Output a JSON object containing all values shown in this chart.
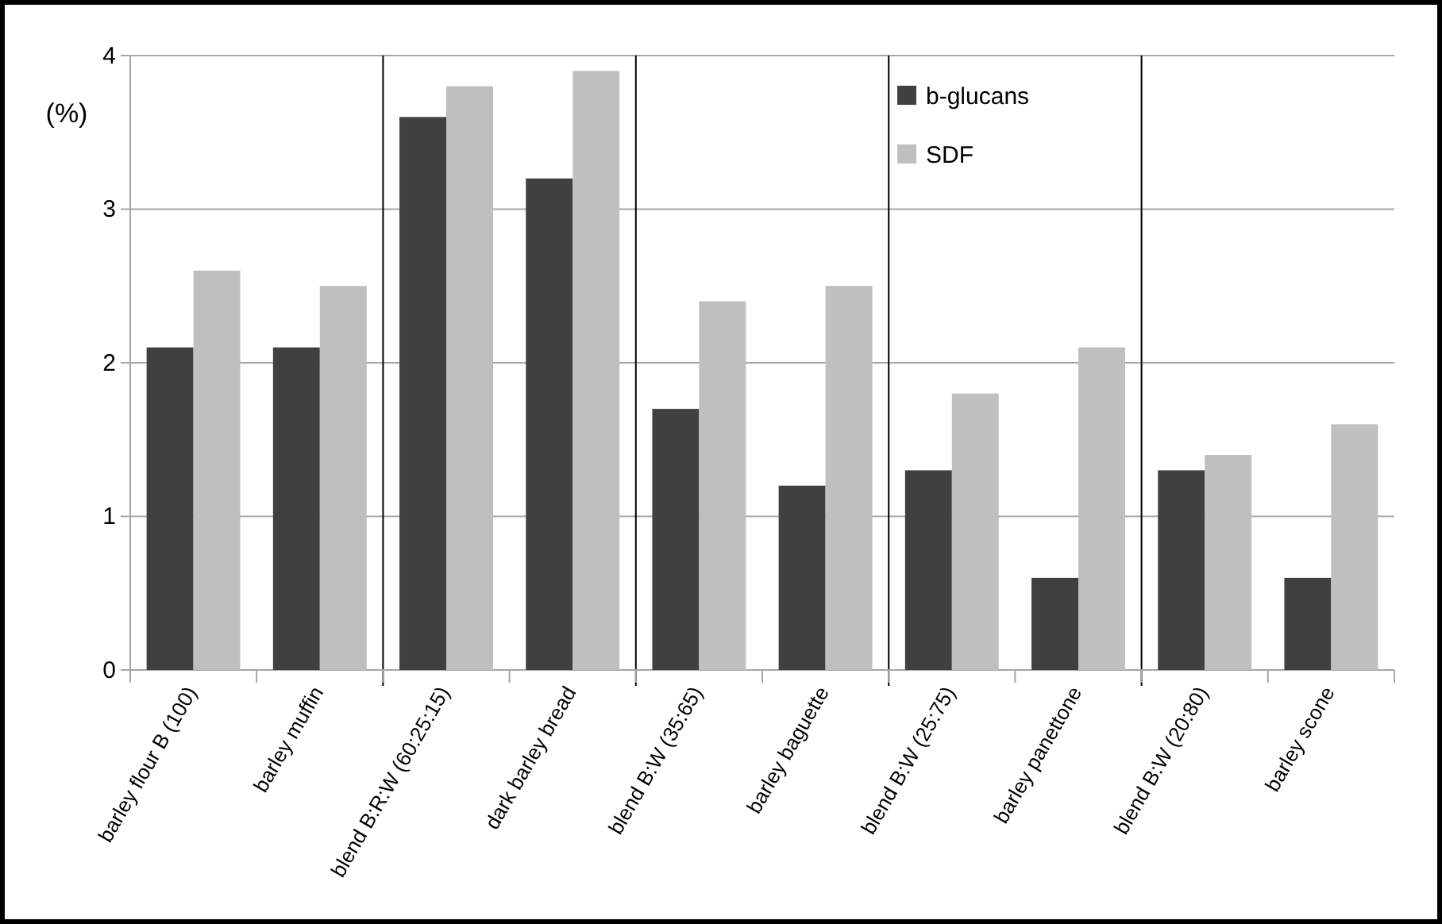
{
  "chart_data": {
    "type": "bar",
    "ylabel": "(%)",
    "categories": [
      "barley flour B (100)",
      "barley muffin",
      "blend B:R:W (60:25:15)",
      "dark barley bread",
      "blend B:W (35:65)",
      "barley baguette",
      "blend B:W (25:75)",
      "barley panettone",
      "blend B:W (20:80)",
      "barley scone"
    ],
    "series": [
      {
        "name": "b-glucans",
        "color": "#404040",
        "values": [
          2.1,
          2.1,
          3.6,
          3.2,
          1.7,
          1.2,
          1.3,
          0.6,
          1.3,
          0.6
        ]
      },
      {
        "name": "SDF",
        "color": "#bfbfbf",
        "values": [
          2.6,
          2.5,
          3.8,
          3.9,
          2.4,
          2.5,
          1.8,
          2.1,
          1.4,
          1.6
        ]
      }
    ],
    "ylim": [
      0,
      4
    ],
    "yticks": [
      0,
      1,
      2,
      3,
      4
    ],
    "grid": "y",
    "legend": "top"
  }
}
